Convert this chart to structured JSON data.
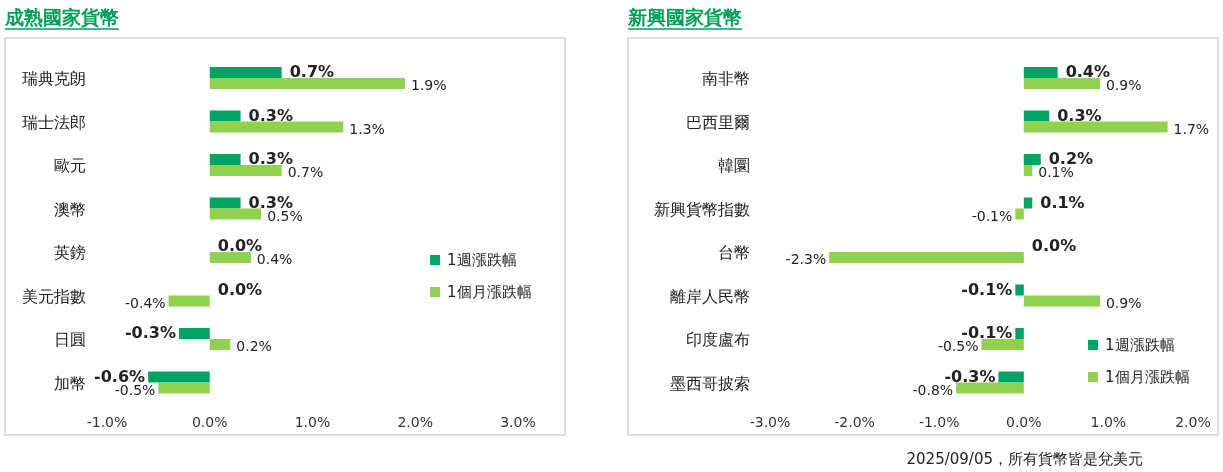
{
  "chart_data": [
    {
      "type": "bar",
      "orientation": "horizontal",
      "title": "成熟國家貨幣",
      "categories": [
        "瑞典克朗",
        "瑞士法郎",
        "歐元",
        "澳幣",
        "英鎊",
        "美元指數",
        "日圓",
        "加幣"
      ],
      "series": [
        {
          "name": "1週漲跌幅",
          "color": "#00a366",
          "values": [
            0.7,
            0.3,
            0.3,
            0.3,
            0.0,
            0.0,
            -0.3,
            -0.6
          ],
          "value_labels": [
            "0.7%",
            "0.3%",
            "0.3%",
            "0.3%",
            "0.0%",
            "0.0%",
            "-0.3%",
            "-0.6%"
          ]
        },
        {
          "name": "1個月漲跌幅",
          "color": "#92d050",
          "values": [
            1.9,
            1.3,
            0.7,
            0.5,
            0.4,
            -0.4,
            0.2,
            -0.5
          ],
          "value_labels": [
            "1.9%",
            "1.3%",
            "0.7%",
            "0.5%",
            "0.4%",
            "-0.4%",
            "0.2%",
            "-0.5%"
          ]
        }
      ],
      "xlim": [
        -1,
        3
      ],
      "xticks": [
        {
          "value": -1,
          "label": "-1.0%"
        },
        {
          "value": 0,
          "label": "0.0%"
        },
        {
          "value": 1,
          "label": "1.0%"
        },
        {
          "value": 2,
          "label": "2.0%"
        },
        {
          "value": 3,
          "label": "3.0%"
        }
      ],
      "legend": "right"
    },
    {
      "type": "bar",
      "orientation": "horizontal",
      "title": "新興國家貨幣",
      "categories": [
        "南非幣",
        "巴西里爾",
        "韓圜",
        "新興貨幣指數",
        "台幣",
        "離岸人民幣",
        "印度盧布",
        "墨西哥披索"
      ],
      "series": [
        {
          "name": "1週漲跌幅",
          "color": "#00a366",
          "values": [
            0.4,
            0.3,
            0.2,
            0.1,
            0.0,
            -0.1,
            -0.1,
            -0.3
          ],
          "value_labels": [
            "0.4%",
            "0.3%",
            "0.2%",
            "0.1%",
            "0.0%",
            "-0.1%",
            "-0.1%",
            "-0.3%"
          ]
        },
        {
          "name": "1個月漲跌幅",
          "color": "#92d050",
          "values": [
            0.9,
            1.7,
            0.1,
            -0.1,
            -2.3,
            0.9,
            -0.5,
            -0.8
          ],
          "value_labels": [
            "0.9%",
            "1.7%",
            "0.1%",
            "-0.1%",
            "-2.3%",
            "0.9%",
            "-0.5%",
            "-0.8%"
          ]
        }
      ],
      "xlim": [
        -3,
        2
      ],
      "xticks": [
        {
          "value": -3,
          "label": "-3.0%"
        },
        {
          "value": -2,
          "label": "-2.0%"
        },
        {
          "value": -1,
          "label": "-1.0%"
        },
        {
          "value": 0,
          "label": "0.0%"
        },
        {
          "value": 1,
          "label": "1.0%"
        },
        {
          "value": 2,
          "label": "2.0%"
        }
      ],
      "legend": "bottom right",
      "annotations": [
        "2025/09/05，所有貨幣皆是兌美元"
      ]
    }
  ]
}
